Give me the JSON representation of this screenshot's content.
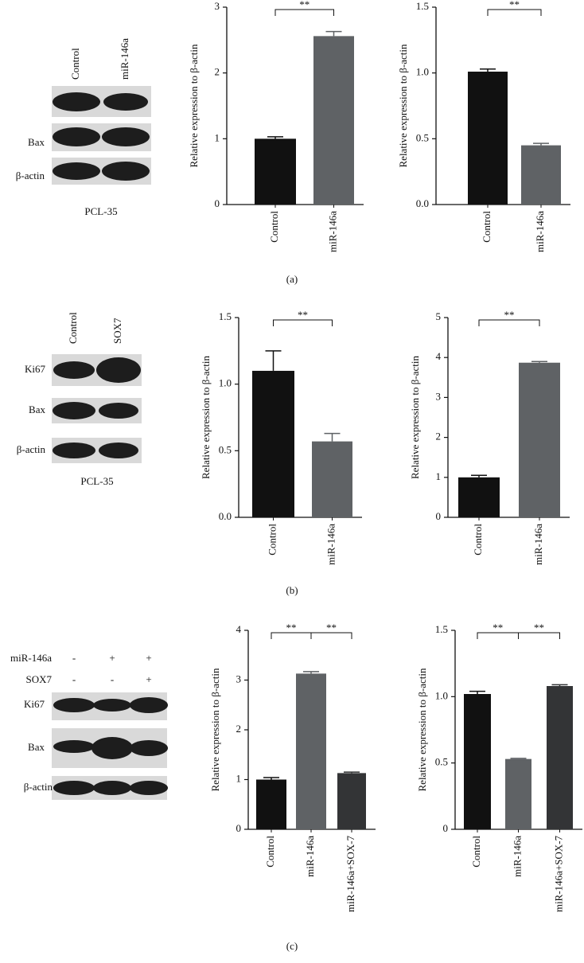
{
  "chart_data": [
    {
      "type": "bar",
      "y_label": "Relative expression to β-actin",
      "categories": [
        "Control",
        "miR-146a"
      ],
      "values": [
        1.0,
        2.56
      ],
      "errors": [
        0.03,
        0.07
      ],
      "colors": [
        "#111111",
        "#5f6265"
      ],
      "ylim": [
        0,
        3
      ],
      "yticks": [
        0,
        1,
        2,
        3
      ],
      "annotations": [
        "**"
      ]
    },
    {
      "type": "bar",
      "y_label": "Relative expression to β-actin",
      "categories": [
        "Control",
        "miR-146a"
      ],
      "values": [
        1.01,
        0.45
      ],
      "errors": [
        0.02,
        0.015
      ],
      "colors": [
        "#111111",
        "#5f6265"
      ],
      "ylim": [
        0,
        1.5
      ],
      "yticks": [
        {
          "value": 0,
          "label": "0.0"
        },
        {
          "value": 0.5,
          "label": "0.5"
        },
        {
          "value": 1,
          "label": "1.0"
        },
        {
          "value": 1.5,
          "label": "1.5"
        }
      ],
      "annotations": [
        "**"
      ]
    },
    {
      "type": "bar",
      "y_label": "Relative expression to β-actin",
      "categories": [
        "Control",
        "miR-146a"
      ],
      "values": [
        1.1,
        0.57
      ],
      "errors": [
        0.15,
        0.06
      ],
      "colors": [
        "#111111",
        "#5f6265"
      ],
      "ylim": [
        0,
        1.5
      ],
      "yticks": [
        {
          "value": 0,
          "label": "0.0"
        },
        {
          "value": 0.5,
          "label": "0.5"
        },
        {
          "value": 1,
          "label": "1.0"
        },
        {
          "value": 1.5,
          "label": "1.5"
        }
      ],
      "annotations": [
        "**"
      ]
    },
    {
      "type": "bar",
      "y_label": "Relative expression to β-actin",
      "categories": [
        "Control",
        "miR-146a"
      ],
      "values": [
        1.0,
        3.87
      ],
      "errors": [
        0.05,
        0.03
      ],
      "colors": [
        "#111111",
        "#5f6265"
      ],
      "ylim": [
        0,
        5
      ],
      "yticks": [
        0,
        1,
        2,
        3,
        4,
        5
      ],
      "annotations": [
        "**"
      ]
    },
    {
      "type": "bar",
      "y_label": "Relative expression to β-actin",
      "categories": [
        "Control",
        "miR-146a",
        "miR-146a+SOX-7"
      ],
      "values": [
        1.0,
        3.13,
        1.13
      ],
      "errors": [
        0.04,
        0.04,
        0.02
      ],
      "colors": [
        "#111111",
        "#5f6265",
        "#333436"
      ],
      "ylim": [
        0,
        4
      ],
      "yticks": [
        0,
        1,
        2,
        3,
        4
      ],
      "annotations": [
        "**",
        "**"
      ]
    },
    {
      "type": "bar",
      "y_label": "Relative expression to β-actin",
      "categories": [
        "Control",
        "miR-146a",
        "miR-146a+SOX-7"
      ],
      "values": [
        1.02,
        0.53,
        1.08
      ],
      "errors": [
        0.02,
        0.005,
        0.01
      ],
      "colors": [
        "#111111",
        "#5f6265",
        "#333436"
      ],
      "ylim": [
        0,
        1.5
      ],
      "yticks": [
        0,
        {
          "value": 0.5,
          "label": "0.5"
        },
        {
          "value": 1,
          "label": "1.0"
        },
        1.5
      ],
      "annotations": [
        "**",
        "**"
      ]
    }
  ],
  "panel_labels": [
    "(a)",
    "(b)",
    "(c)"
  ],
  "blots": [
    {
      "lanes": [
        "Control",
        "miR-146a"
      ],
      "rows": [
        "Bax",
        "β-actin"
      ],
      "caption": "PCL-35"
    },
    {
      "lanes": [
        "Control",
        "SOX7"
      ],
      "rows": [
        "Ki67",
        "Bax",
        "β-actin"
      ],
      "caption": "PCL-35"
    },
    {
      "conditions": [
        {
          "name": "miR-146a",
          "signs": [
            "-",
            "+",
            "+"
          ]
        },
        {
          "name": "SOX7",
          "signs": [
            "-",
            "-",
            "+"
          ]
        }
      ],
      "rows": [
        "Ki67",
        "Bax",
        "β-actin"
      ]
    }
  ]
}
